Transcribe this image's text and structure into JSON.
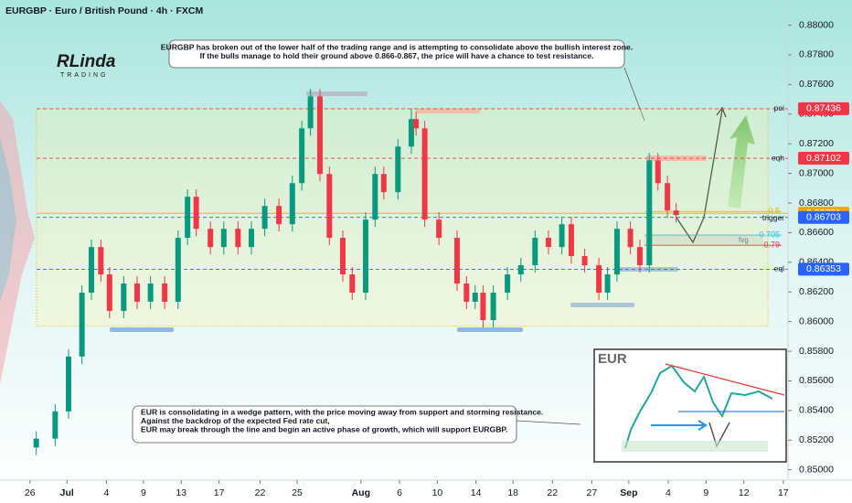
{
  "chart_data": {
    "type": "candlestick",
    "title": "EURGBP · Euro / British Pound · 4h · FXCM",
    "logo": {
      "name": "RLinda",
      "tagline": "TRADING"
    },
    "xlim": [
      0,
      100
    ],
    "xticks": [
      {
        "value": 3.8,
        "label": "26"
      },
      {
        "value": 8.5,
        "label": "Jul"
      },
      {
        "value": 13.5,
        "label": "4"
      },
      {
        "value": 18.2,
        "label": "9"
      },
      {
        "value": 23,
        "label": "13"
      },
      {
        "value": 27.8,
        "label": "17"
      },
      {
        "value": 33,
        "label": "22"
      },
      {
        "value": 37.7,
        "label": "25"
      },
      {
        "value": 45.8,
        "label": "Aug"
      },
      {
        "value": 50.7,
        "label": "6"
      },
      {
        "value": 55.5,
        "label": "10"
      },
      {
        "value": 60.4,
        "label": "14"
      },
      {
        "value": 65.1,
        "label": "18"
      },
      {
        "value": 70.1,
        "label": "22"
      },
      {
        "value": 75.1,
        "label": "27"
      },
      {
        "value": 79.8,
        "label": "Sep"
      },
      {
        "value": 84.8,
        "label": "4"
      },
      {
        "value": 89.6,
        "label": "9"
      },
      {
        "value": 94.4,
        "label": "12"
      },
      {
        "value": 99.4,
        "label": "17"
      }
    ],
    "ylim": [
      0.8493,
      0.8817
    ],
    "yticks": [
      {
        "value": 0.85,
        "label": "0.85000"
      },
      {
        "value": 0.852,
        "label": "0.85200"
      },
      {
        "value": 0.854,
        "label": "0.85400"
      },
      {
        "value": 0.856,
        "label": "0.85600"
      },
      {
        "value": 0.858,
        "label": "0.85800"
      },
      {
        "value": 0.86,
        "label": "0.86000"
      },
      {
        "value": 0.862,
        "label": "0.86200"
      },
      {
        "value": 0.864,
        "label": "0.86400"
      },
      {
        "value": 0.866,
        "label": "0.86600"
      },
      {
        "value": 0.868,
        "label": "0.86800"
      },
      {
        "value": 0.87,
        "label": "0.87000"
      },
      {
        "value": 0.872,
        "label": "0.87200"
      },
      {
        "value": 0.874,
        "label": "0.87400"
      },
      {
        "value": 0.876,
        "label": "0.87600"
      },
      {
        "value": 0.878,
        "label": "0.87800"
      },
      {
        "value": 0.88,
        "label": "0.88000"
      }
    ],
    "grid": false,
    "up_color": "#089981",
    "down_color": "#f23645",
    "candles": {
      "x": [
        4.6,
        7.0,
        8.7,
        10.4,
        11.6,
        12.8,
        13.9,
        15.7,
        17.4,
        19.1,
        20.9,
        22.6,
        23.8,
        24.9,
        26.7,
        28.4,
        30.2,
        31.9,
        33.6,
        35.4,
        37.1,
        38.3,
        39.4,
        40.6,
        41.8,
        43.5,
        44.7,
        46.4,
        47.6,
        48.7,
        50.5,
        52.2,
        52.8,
        53.9,
        55.7,
        58.0,
        59.2,
        60.3,
        61.3,
        62.6,
        64.4,
        66.1,
        67.9,
        69.6,
        71.3,
        72.5,
        74.2,
        76.0,
        77.1,
        78.3,
        80.0,
        81.2,
        82.4,
        83.5,
        84.7,
        85.8
      ],
      "open": [
        0.8515,
        0.8521,
        0.85394,
        0.85764,
        0.86195,
        0.86503,
        0.86318,
        0.86072,
        0.86257,
        0.86134,
        0.86257,
        0.86134,
        0.86565,
        0.86842,
        0.86626,
        0.86503,
        0.86626,
        0.86503,
        0.86626,
        0.8678,
        0.86657,
        0.86934,
        0.87304,
        0.8752,
        0.86996,
        0.86565,
        0.86318,
        0.86195,
        0.86688,
        0.86996,
        0.86873,
        0.87181,
        0.87366,
        0.87304,
        0.86688,
        0.86565,
        0.86257,
        0.86134,
        0.86195,
        0.8601,
        0.86195,
        0.86318,
        0.8638,
        0.86565,
        0.86503,
        0.86657,
        0.86442,
        0.8638,
        0.86195,
        0.86318,
        0.86626,
        0.86503,
        0.8638,
        0.87088,
        0.86934,
        0.8675
      ],
      "high": [
        0.8526,
        0.85444,
        0.85814,
        0.86245,
        0.86553,
        0.86553,
        0.86368,
        0.86307,
        0.86307,
        0.86307,
        0.86307,
        0.86615,
        0.86892,
        0.86892,
        0.86676,
        0.86676,
        0.86676,
        0.86676,
        0.8683,
        0.8683,
        0.86984,
        0.87354,
        0.8757,
        0.8757,
        0.87046,
        0.86615,
        0.86368,
        0.86738,
        0.87046,
        0.87046,
        0.87231,
        0.87436,
        0.87416,
        0.87354,
        0.86738,
        0.86615,
        0.86307,
        0.86245,
        0.86245,
        0.86245,
        0.86368,
        0.8643,
        0.86615,
        0.86615,
        0.86707,
        0.86707,
        0.86492,
        0.8643,
        0.86368,
        0.86676,
        0.86676,
        0.86553,
        0.87138,
        0.87138,
        0.86984,
        0.868
      ],
      "low": [
        0.851,
        0.8516,
        0.85344,
        0.85714,
        0.86145,
        0.86268,
        0.86022,
        0.86022,
        0.86084,
        0.86084,
        0.86084,
        0.86084,
        0.86515,
        0.86576,
        0.86453,
        0.86453,
        0.86453,
        0.86453,
        0.86576,
        0.86607,
        0.86607,
        0.86884,
        0.87254,
        0.86946,
        0.86515,
        0.86268,
        0.86145,
        0.86145,
        0.86638,
        0.86823,
        0.86823,
        0.87131,
        0.87254,
        0.86638,
        0.86515,
        0.86207,
        0.86084,
        0.86084,
        0.8596,
        0.8596,
        0.86145,
        0.86268,
        0.8633,
        0.86453,
        0.86453,
        0.86392,
        0.8633,
        0.86145,
        0.86145,
        0.86268,
        0.86453,
        0.8633,
        0.8633,
        0.86884,
        0.867,
        0.86669
      ],
      "close": [
        0.8521,
        0.85394,
        0.85764,
        0.86195,
        0.86503,
        0.86318,
        0.86072,
        0.86257,
        0.86134,
        0.86257,
        0.86134,
        0.86565,
        0.86842,
        0.86626,
        0.86503,
        0.86626,
        0.86503,
        0.86626,
        0.8678,
        0.86657,
        0.86934,
        0.87304,
        0.8752,
        0.86996,
        0.86565,
        0.86318,
        0.86195,
        0.86688,
        0.86996,
        0.86873,
        0.87181,
        0.87366,
        0.87304,
        0.86688,
        0.86565,
        0.86257,
        0.86134,
        0.86195,
        0.8601,
        0.86195,
        0.86318,
        0.8638,
        0.86565,
        0.86503,
        0.86657,
        0.86442,
        0.8638,
        0.86195,
        0.86318,
        0.86626,
        0.86503,
        0.8638,
        0.87088,
        0.86934,
        0.8675,
        0.86719
      ]
    },
    "range_box": {
      "low": 0.8597,
      "high": 0.87436
    },
    "levels": [
      {
        "name": "poi",
        "value": 0.87436,
        "color": "#f23645"
      },
      {
        "name": "eqh",
        "value": 0.87102,
        "color": "#f23645"
      },
      {
        "value": 0.86731,
        "color": "#f7a600"
      },
      {
        "name": "trigger",
        "value": 0.86703,
        "color": "#2962ff"
      },
      {
        "name": "eql",
        "value": 0.86353,
        "color": "#2962ff"
      }
    ],
    "fib_levels": [
      {
        "ratio": 0.5,
        "price": 0.86743,
        "color": "#f7a600"
      },
      {
        "ratio": 0.705,
        "price": 0.86583,
        "color": "#26c6da"
      },
      {
        "ratio": 0.79,
        "price": 0.86515,
        "color": "#f23645"
      }
    ],
    "fvg_label": "fvg",
    "annotations": [
      {
        "lines": [
          "EURGBP has broken out of the lower half of the trading range and is attempting to consolidate above the bullish interest zone.",
          "If the bulls manage to hold their ground above 0.866-0.867, the price will have a chance to test resistance."
        ]
      },
      {
        "lines": [
          "EUR is consolidating in a wedge pattern, with the price moving away from support and storming resistance.",
          "Against the backdrop of the expected Fed rate cut,",
          "EUR may break through the line and begin an active phase of growth, which will support EURGBP."
        ]
      }
    ],
    "inset": {
      "title": "EUR"
    }
  }
}
